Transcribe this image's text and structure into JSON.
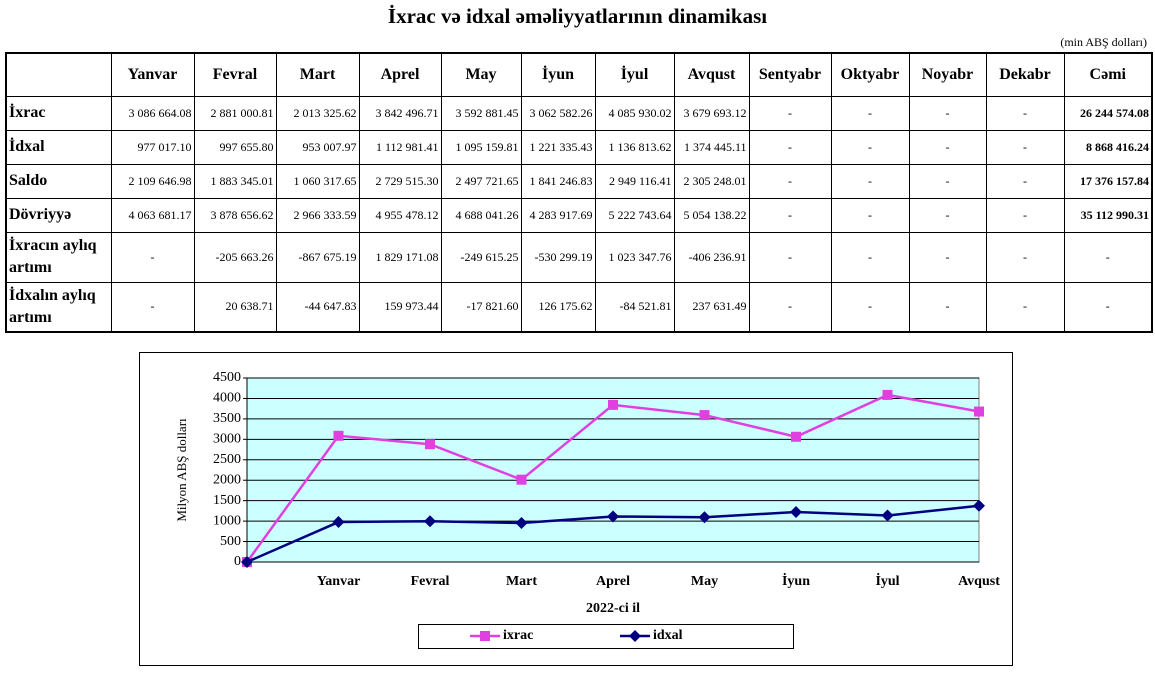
{
  "title": "İxrac və idxal əməliyyatlarının dinamikası",
  "unit_note": "(min ABŞ dolları)",
  "table": {
    "header": [
      "Yanvar",
      "Fevral",
      "Mart",
      "Aprel",
      "May",
      "İyun",
      "İyul",
      "Avqust",
      "Sentyabr",
      "Oktyabr",
      "Noyabr",
      "Dekabr",
      "Cəmi"
    ],
    "rows": [
      [
        "İxrac",
        "3 086 664.08",
        "2 881 000.81",
        "2 013 325.62",
        "3 842 496.71",
        "3 592 881.45",
        "3 062 582.26",
        "4 085 930.02",
        "3 679 693.12",
        "-",
        "-",
        "-",
        "-",
        "26 244 574.08"
      ],
      [
        "İdxal",
        "977 017.10",
        "997 655.80",
        "953 007.97",
        "1 112 981.41",
        "1 095 159.81",
        "1 221 335.43",
        "1 136 813.62",
        "1 374 445.11",
        "-",
        "-",
        "-",
        "-",
        "8 868 416.24"
      ],
      [
        "Saldo",
        "2 109 646.98",
        "1 883 345.01",
        "1 060 317.65",
        "2 729 515.30",
        "2 497 721.65",
        "1 841 246.83",
        "2 949 116.41",
        "2 305 248.01",
        "-",
        "-",
        "-",
        "-",
        "17 376 157.84"
      ],
      [
        "Dövriyyə",
        "4 063 681.17",
        "3 878 656.62",
        "2 966 333.59",
        "4 955 478.12",
        "4 688 041.26",
        "4 283 917.69",
        "5 222 743.64",
        "5 054 138.22",
        "-",
        "-",
        "-",
        "-",
        "35 112 990.31"
      ],
      [
        "İxracın aylıq artımı",
        "-",
        "-205 663.26",
        "-867 675.19",
        "1 829 171.08",
        "-249 615.25",
        "-530 299.19",
        "1 023 347.76",
        "-406 236.91",
        "-",
        "-",
        "-",
        "-",
        "-"
      ],
      [
        "İdxalın aylıq artımı",
        "-",
        "20 638.71",
        "-44 647.83",
        "159 973.44",
        "-17 821.60",
        "126 175.62",
        "-84 521.81",
        "237 631.49",
        "-",
        "-",
        "-",
        "-",
        "-"
      ]
    ]
  },
  "chart_data": {
    "type": "line",
    "xlabel": "2022-ci il",
    "ylabel": "Milyon ABŞ dolları",
    "categories": [
      null,
      "Yanvar",
      "Fevral",
      "Mart",
      "Aprel",
      "May",
      "İyun",
      "İyul",
      "Avqust"
    ],
    "series": [
      {
        "name": "ixrac",
        "color": "#e040e0",
        "marker": "square",
        "values": [
          0,
          3086.66,
          2881.0,
          2013.33,
          3842.5,
          3592.88,
          3062.58,
          4085.93,
          3679.69
        ]
      },
      {
        "name": "idxal",
        "color": "#000080",
        "marker": "diamond",
        "values": [
          0,
          977.02,
          997.66,
          953.01,
          1112.98,
          1095.16,
          1221.34,
          1136.81,
          1374.45
        ]
      }
    ],
    "ylim": [
      0,
      4500
    ],
    "yticks": [
      0,
      500,
      1000,
      1500,
      2000,
      2500,
      3000,
      3500,
      4000,
      4500
    ],
    "grid": true,
    "plot_background": "#ccffff",
    "legend": "bottom"
  }
}
